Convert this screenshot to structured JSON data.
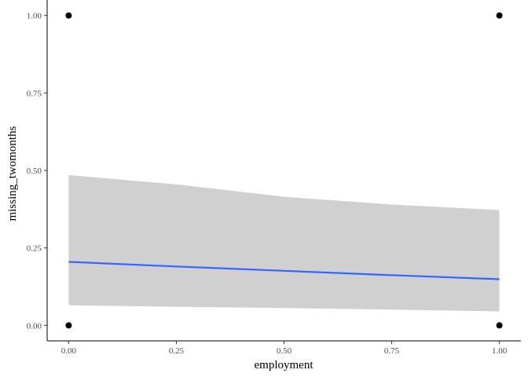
{
  "chart_data": {
    "type": "scatter",
    "xlabel": "employment",
    "ylabel": "missing_twomonths",
    "xlim": [
      -0.05,
      1.05
    ],
    "ylim": [
      -0.05,
      1.05
    ],
    "x_ticks": [
      0.0,
      0.25,
      0.5,
      0.75,
      1.0
    ],
    "x_tick_labels": [
      "0.00",
      "0.25",
      "0.50",
      "0.75",
      "1.00"
    ],
    "y_ticks": [
      0.0,
      0.25,
      0.5,
      0.75,
      1.0
    ],
    "y_tick_labels": [
      "0.00",
      "0.25",
      "0.50",
      "0.75",
      "1.00"
    ],
    "grid": false,
    "points": {
      "x": [
        0,
        0,
        1,
        1
      ],
      "y": [
        0,
        1,
        0,
        1
      ],
      "color": "#000000"
    },
    "smooth": {
      "x": [
        0,
        0.25,
        0.5,
        0.75,
        1.0
      ],
      "fit": [
        0.205,
        0.19,
        0.176,
        0.162,
        0.149
      ],
      "upper": [
        0.485,
        0.455,
        0.415,
        0.39,
        0.372
      ],
      "lower": [
        0.065,
        0.06,
        0.056,
        0.051,
        0.045
      ],
      "line_color": "#3366FF",
      "band_color": "#d0d0d0"
    }
  }
}
